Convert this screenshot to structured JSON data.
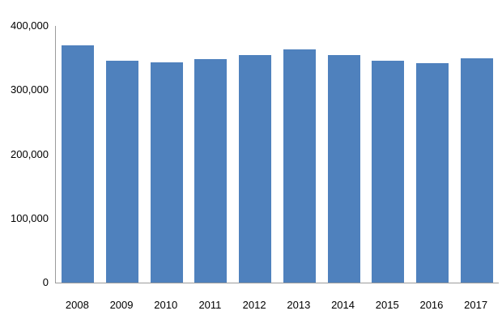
{
  "chart_data": {
    "type": "bar",
    "title": "",
    "xlabel": "",
    "ylabel": "",
    "categories": [
      "2008",
      "2009",
      "2010",
      "2011",
      "2012",
      "2013",
      "2014",
      "2015",
      "2016",
      "2017"
    ],
    "values": [
      370000,
      346000,
      343000,
      348000,
      355000,
      364000,
      355000,
      346000,
      342000,
      350000
    ],
    "ylim": [
      0,
      400000
    ],
    "ytick_interval": 100000,
    "ytick_labels": [
      "0",
      "100,000",
      "200,000",
      "300,000",
      "400,000"
    ],
    "grid": false,
    "legend": "none",
    "bar_color": "#4f81bd",
    "axis_color": "#9b9b9b",
    "text_color": "#000000",
    "background_color": "#ffffff"
  }
}
